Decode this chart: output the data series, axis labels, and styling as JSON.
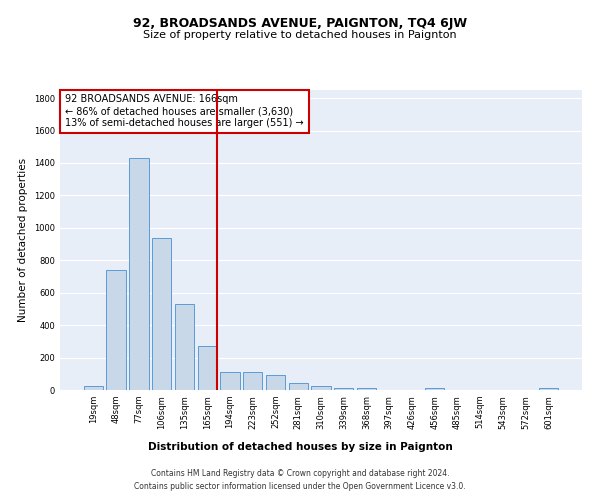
{
  "title": "92, BROADSANDS AVENUE, PAIGNTON, TQ4 6JW",
  "subtitle": "Size of property relative to detached houses in Paignton",
  "xlabel": "Distribution of detached houses by size in Paignton",
  "ylabel": "Number of detached properties",
  "bin_labels": [
    "19sqm",
    "48sqm",
    "77sqm",
    "106sqm",
    "135sqm",
    "165sqm",
    "194sqm",
    "223sqm",
    "252sqm",
    "281sqm",
    "310sqm",
    "339sqm",
    "368sqm",
    "397sqm",
    "426sqm",
    "456sqm",
    "485sqm",
    "514sqm",
    "543sqm",
    "572sqm",
    "601sqm"
  ],
  "bar_values": [
    25,
    740,
    1430,
    935,
    530,
    270,
    110,
    110,
    95,
    45,
    25,
    15,
    15,
    0,
    0,
    15,
    0,
    0,
    0,
    0,
    15
  ],
  "bar_color": "#c8d8e8",
  "bar_edge_color": "#5b9bd5",
  "vline_index": 5,
  "vline_color": "#cc0000",
  "annotation_text": "92 BROADSANDS AVENUE: 166sqm\n← 86% of detached houses are smaller (3,630)\n13% of semi-detached houses are larger (551) →",
  "annotation_box_color": "white",
  "annotation_box_edge_color": "#cc0000",
  "footer_line1": "Contains HM Land Registry data © Crown copyright and database right 2024.",
  "footer_line2": "Contains public sector information licensed under the Open Government Licence v3.0.",
  "ylim": [
    0,
    1850
  ],
  "yticks": [
    0,
    200,
    400,
    600,
    800,
    1000,
    1200,
    1400,
    1600,
    1800
  ],
  "background_color": "#e8eef8",
  "title_fontsize": 9,
  "subtitle_fontsize": 8,
  "ylabel_fontsize": 7.5,
  "xlabel_fontsize": 7.5,
  "tick_fontsize": 6,
  "annotation_fontsize": 7,
  "footer_fontsize": 5.5
}
